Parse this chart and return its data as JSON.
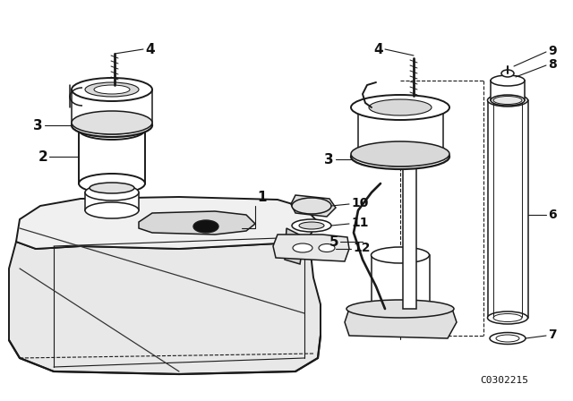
{
  "bg_color": "#ffffff",
  "line_color": "#1a1a1a",
  "label_color": "#111111",
  "diagram_code": "C0302215",
  "font_size": 10,
  "code_font_size": 8,
  "lw": 1.1
}
